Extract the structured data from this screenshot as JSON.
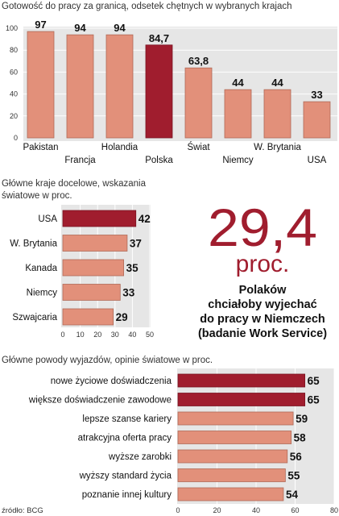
{
  "colors": {
    "highlight": "#a01d2e",
    "bar": "#e2907a",
    "bar_stroke": "#b06a58",
    "panel": "#e6e6e6",
    "accent_text": "#a01d2e"
  },
  "chart_data": [
    {
      "type": "bar",
      "title": "Gotowość do pracy za granicą, odsetek chętnych w wybranych krajach",
      "categories": [
        "Pakistan",
        "Francja",
        "Holandia",
        "Polska",
        "Świat",
        "Niemcy",
        "W. Brytania",
        "USA"
      ],
      "values": [
        97,
        94,
        94,
        84.7,
        63.8,
        44,
        44,
        33
      ],
      "value_labels": [
        "97",
        "94",
        "94",
        "84,7",
        "63,8",
        "44",
        "44",
        "33"
      ],
      "highlight": "Polska",
      "yticks": [
        "0",
        "20",
        "40",
        "60",
        "80",
        "100"
      ],
      "ylim": [
        0,
        100
      ],
      "grid": true
    },
    {
      "type": "bar",
      "orientation": "horizontal",
      "title_lines": [
        "Główne kraje docelowe, wskazania",
        "światowe w proc."
      ],
      "categories": [
        "USA",
        "W. Brytania",
        "Kanada",
        "Niemcy",
        "Szwajcaria"
      ],
      "values": [
        42,
        37,
        35,
        33,
        29
      ],
      "highlight": "USA",
      "xticks": [
        "0",
        "10",
        "20",
        "30",
        "40",
        "50"
      ],
      "xlim": [
        0,
        50
      ],
      "grid": true
    },
    {
      "type": "bar",
      "orientation": "horizontal",
      "title": "Główne powody wyjazdów, opinie światowe w proc.",
      "categories": [
        "nowe życiowe doświadczenia",
        "większe doświadczenie zawodowe",
        "lepsze szanse kariery",
        "atrakcyjna oferta pracy",
        "wyższe zarobki",
        "wyższy standard życia",
        "poznanie innej kultury"
      ],
      "values": [
        65,
        65,
        59,
        58,
        56,
        55,
        54
      ],
      "highlight": [
        "nowe życiowe doświadczenia",
        "większe doświadczenie zawodowe"
      ],
      "xticks": [
        "0",
        "20",
        "40",
        "60",
        "80"
      ],
      "xlim": [
        0,
        80
      ],
      "grid": true
    }
  ],
  "callout": {
    "number": "29,4",
    "unit": "proc.",
    "lines": [
      "Polaków",
      "chciałoby wyjechać",
      "do pracy w Niemczech",
      "(badanie Work Service)"
    ]
  },
  "source": "źródło: BCG"
}
